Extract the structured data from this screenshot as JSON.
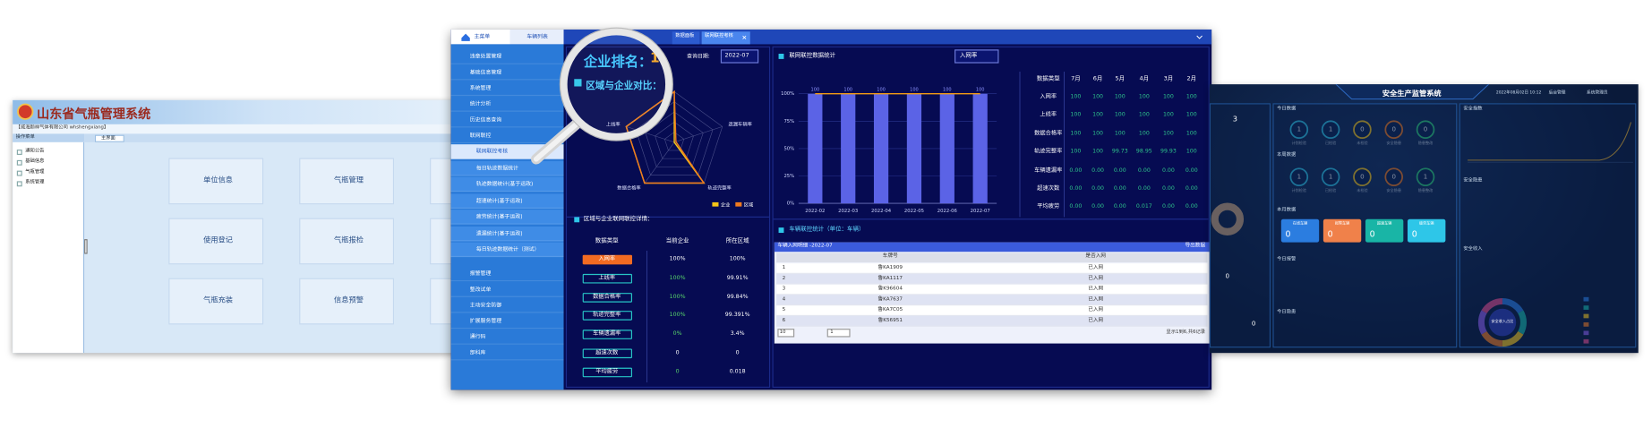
{
  "left": {
    "title": "山东省气瓶管理系统",
    "company": "【威海颜祥气体有限公司 whshengxiang】",
    "side_header": "操作菜单",
    "tab": "主界面",
    "menu": [
      "通知公告",
      "基础信息",
      "气瓶管理",
      "系统管理"
    ],
    "tiles": [
      "单位信息",
      "气瓶管理",
      "使用登记",
      "气瓶报检",
      "气瓶充装",
      "信息预警"
    ]
  },
  "middle": {
    "tabs": [
      "主菜单",
      "车辆列表"
    ],
    "page_tabs": [
      "数据面板",
      "联网联控考核"
    ],
    "menu": [
      "违章处置管理",
      "基础信息管理",
      "系统管理",
      "统计分析",
      "历史信息查询",
      "联网联控",
      "报警管理",
      "整改试单",
      "主动安全防御",
      "扩展服务管理",
      "通行码",
      "部科库"
    ],
    "submenu": [
      "联网联控考核",
      "每日轨迹数据统计",
      "轨迹数据统计(基于运政)",
      "超速统计(基于运政)",
      "疲劳统计(基于运政)",
      "遗漏统计(基于运政)",
      "每日轨迹数据统计（测试）"
    ],
    "rank_label": "企业排名：",
    "rank": "1",
    "date_label": "查询日期:",
    "date": "2022-07",
    "compare_title": "区域与企业对比：",
    "detail_title": "区域与企业联网联控详情：",
    "detail": {
      "header": [
        "数据类型",
        "当前企业",
        "所在区域"
      ],
      "rows": [
        [
          "入网率",
          "100%",
          "100%"
        ],
        [
          "上线率",
          "100%",
          "99.91%"
        ],
        [
          "数据合格率",
          "100%",
          "99.84%"
        ],
        [
          "轨迹完整率",
          "100%",
          "99.391%"
        ],
        [
          "车辆遗漏率",
          "0%",
          "3.4%"
        ],
        [
          "超速次数",
          "0",
          "0"
        ],
        [
          "平均疲劳",
          "0",
          "0.018"
        ]
      ]
    },
    "stats_title": "联网联控数据统计",
    "stats_select": "入网率",
    "month_table": {
      "header": [
        "数据类型",
        "7月",
        "6月",
        "5月",
        "4月",
        "3月",
        "2月"
      ],
      "rows": [
        [
          "入网率",
          "100",
          "100",
          "100",
          "100",
          "100",
          "100"
        ],
        [
          "上线率",
          "100",
          "100",
          "100",
          "100",
          "100",
          "100"
        ],
        [
          "数据合格率",
          "100",
          "100",
          "100",
          "100",
          "100",
          "100"
        ],
        [
          "轨迹完整率",
          "100",
          "100",
          "99.73",
          "98.95",
          "99.93",
          "100"
        ],
        [
          "车辆遗漏率",
          "0.00",
          "0.00",
          "0.00",
          "0.00",
          "0.00",
          "0.00"
        ],
        [
          "超速次数",
          "0.00",
          "0.00",
          "0.00",
          "0.00",
          "0.00",
          "0.00"
        ],
        [
          "平均疲劳",
          "0.00",
          "0.00",
          "0.00",
          "0.017",
          "0.00",
          "0.00"
        ]
      ]
    },
    "vehicle_title": "车辆联控统计（单位：车辆）",
    "list": {
      "title": "车辆入网明细 -2022-07",
      "export": "导出数据",
      "header": [
        "车牌号",
        "是否入网"
      ],
      "rows": [
        [
          "1",
          "鲁KA1909",
          "已入网"
        ],
        [
          "2",
          "鲁KA1117",
          "已入网"
        ],
        [
          "3",
          "鲁K96604",
          "已入网"
        ],
        [
          "4",
          "鲁KA7637",
          "已入网"
        ],
        [
          "5",
          "鲁KA7C05",
          "已入网"
        ],
        [
          "6",
          "鲁K56951",
          "已入网"
        ]
      ],
      "page_size": "10",
      "page": "1",
      "summary": "显示1到6,共6记录"
    }
  },
  "chart_data": [
    {
      "type": "radar",
      "axes": [
        null,
        "遗漏车辆率",
        "轨迹完整率",
        "数据合格率",
        "上线率"
      ],
      "rlim": [
        0,
        100
      ],
      "series": [
        {
          "name": "企业",
          "color": "#f5c518",
          "values": [
            100,
            0,
            100,
            100,
            100
          ]
        },
        {
          "name": "区域",
          "color": "#f07a1e",
          "values": [
            100,
            3.4,
            99.391,
            99.84,
            99.91
          ]
        }
      ]
    },
    {
      "type": "bar",
      "categories": [
        "2022-02",
        "2022-03",
        "2022-04",
        "2022-05",
        "2022-06",
        "2022-07"
      ],
      "series": [
        {
          "color": "#5b63e6",
          "values": [
            100,
            100,
            100,
            100,
            100,
            100
          ]
        },
        {
          "color": "#f39c12",
          "style": "line",
          "values": [
            100,
            100,
            100,
            100,
            100,
            100
          ]
        }
      ],
      "ylim": [
        0,
        100
      ],
      "yticks": [
        {
          "value": 0,
          "label": "0%"
        },
        {
          "value": 25,
          "label": "25%"
        },
        {
          "value": 50,
          "label": "50%"
        },
        {
          "value": 75,
          "label": "75%"
        },
        {
          "value": 100,
          "label": "100%"
        }
      ],
      "grid": true
    }
  ],
  "right": {
    "title": "安全生产监管系统",
    "datetime": "2022年08月02日 10:12",
    "admin": "后台管理",
    "user": "系统管理员",
    "left_value": "3",
    "today": "今日数据",
    "today_items": [
      {
        "label": "计划检验",
        "value": "1"
      },
      {
        "label": "已检验",
        "value": "1"
      },
      {
        "label": "未检验",
        "value": "0"
      },
      {
        "label": "安全隐患",
        "value": "0"
      },
      {
        "label": "隐患整改",
        "value": "0"
      }
    ],
    "week": "本周数据",
    "week_items": [
      {
        "label": "计划检验",
        "value": "1"
      },
      {
        "label": "已检验",
        "value": "1"
      },
      {
        "label": "未检验",
        "value": "0"
      },
      {
        "label": "安全隐患",
        "value": "0"
      },
      {
        "label": "隐患整改",
        "value": "1"
      }
    ],
    "month": "本月数据",
    "month_cards": [
      {
        "label": "在线车辆",
        "value": "0"
      },
      {
        "label": "报警车辆",
        "value": "0"
      },
      {
        "label": "超速车辆",
        "value": "0"
      },
      {
        "label": "疲劳车辆",
        "value": "0"
      }
    ],
    "alarm": "今日报警",
    "hidden": "今日隐患",
    "bottom_values": [
      "0",
      "0"
    ],
    "index": "安全指数",
    "danger": "安全隐患",
    "income": "安全收入",
    "income_center": "安全收入占比"
  }
}
